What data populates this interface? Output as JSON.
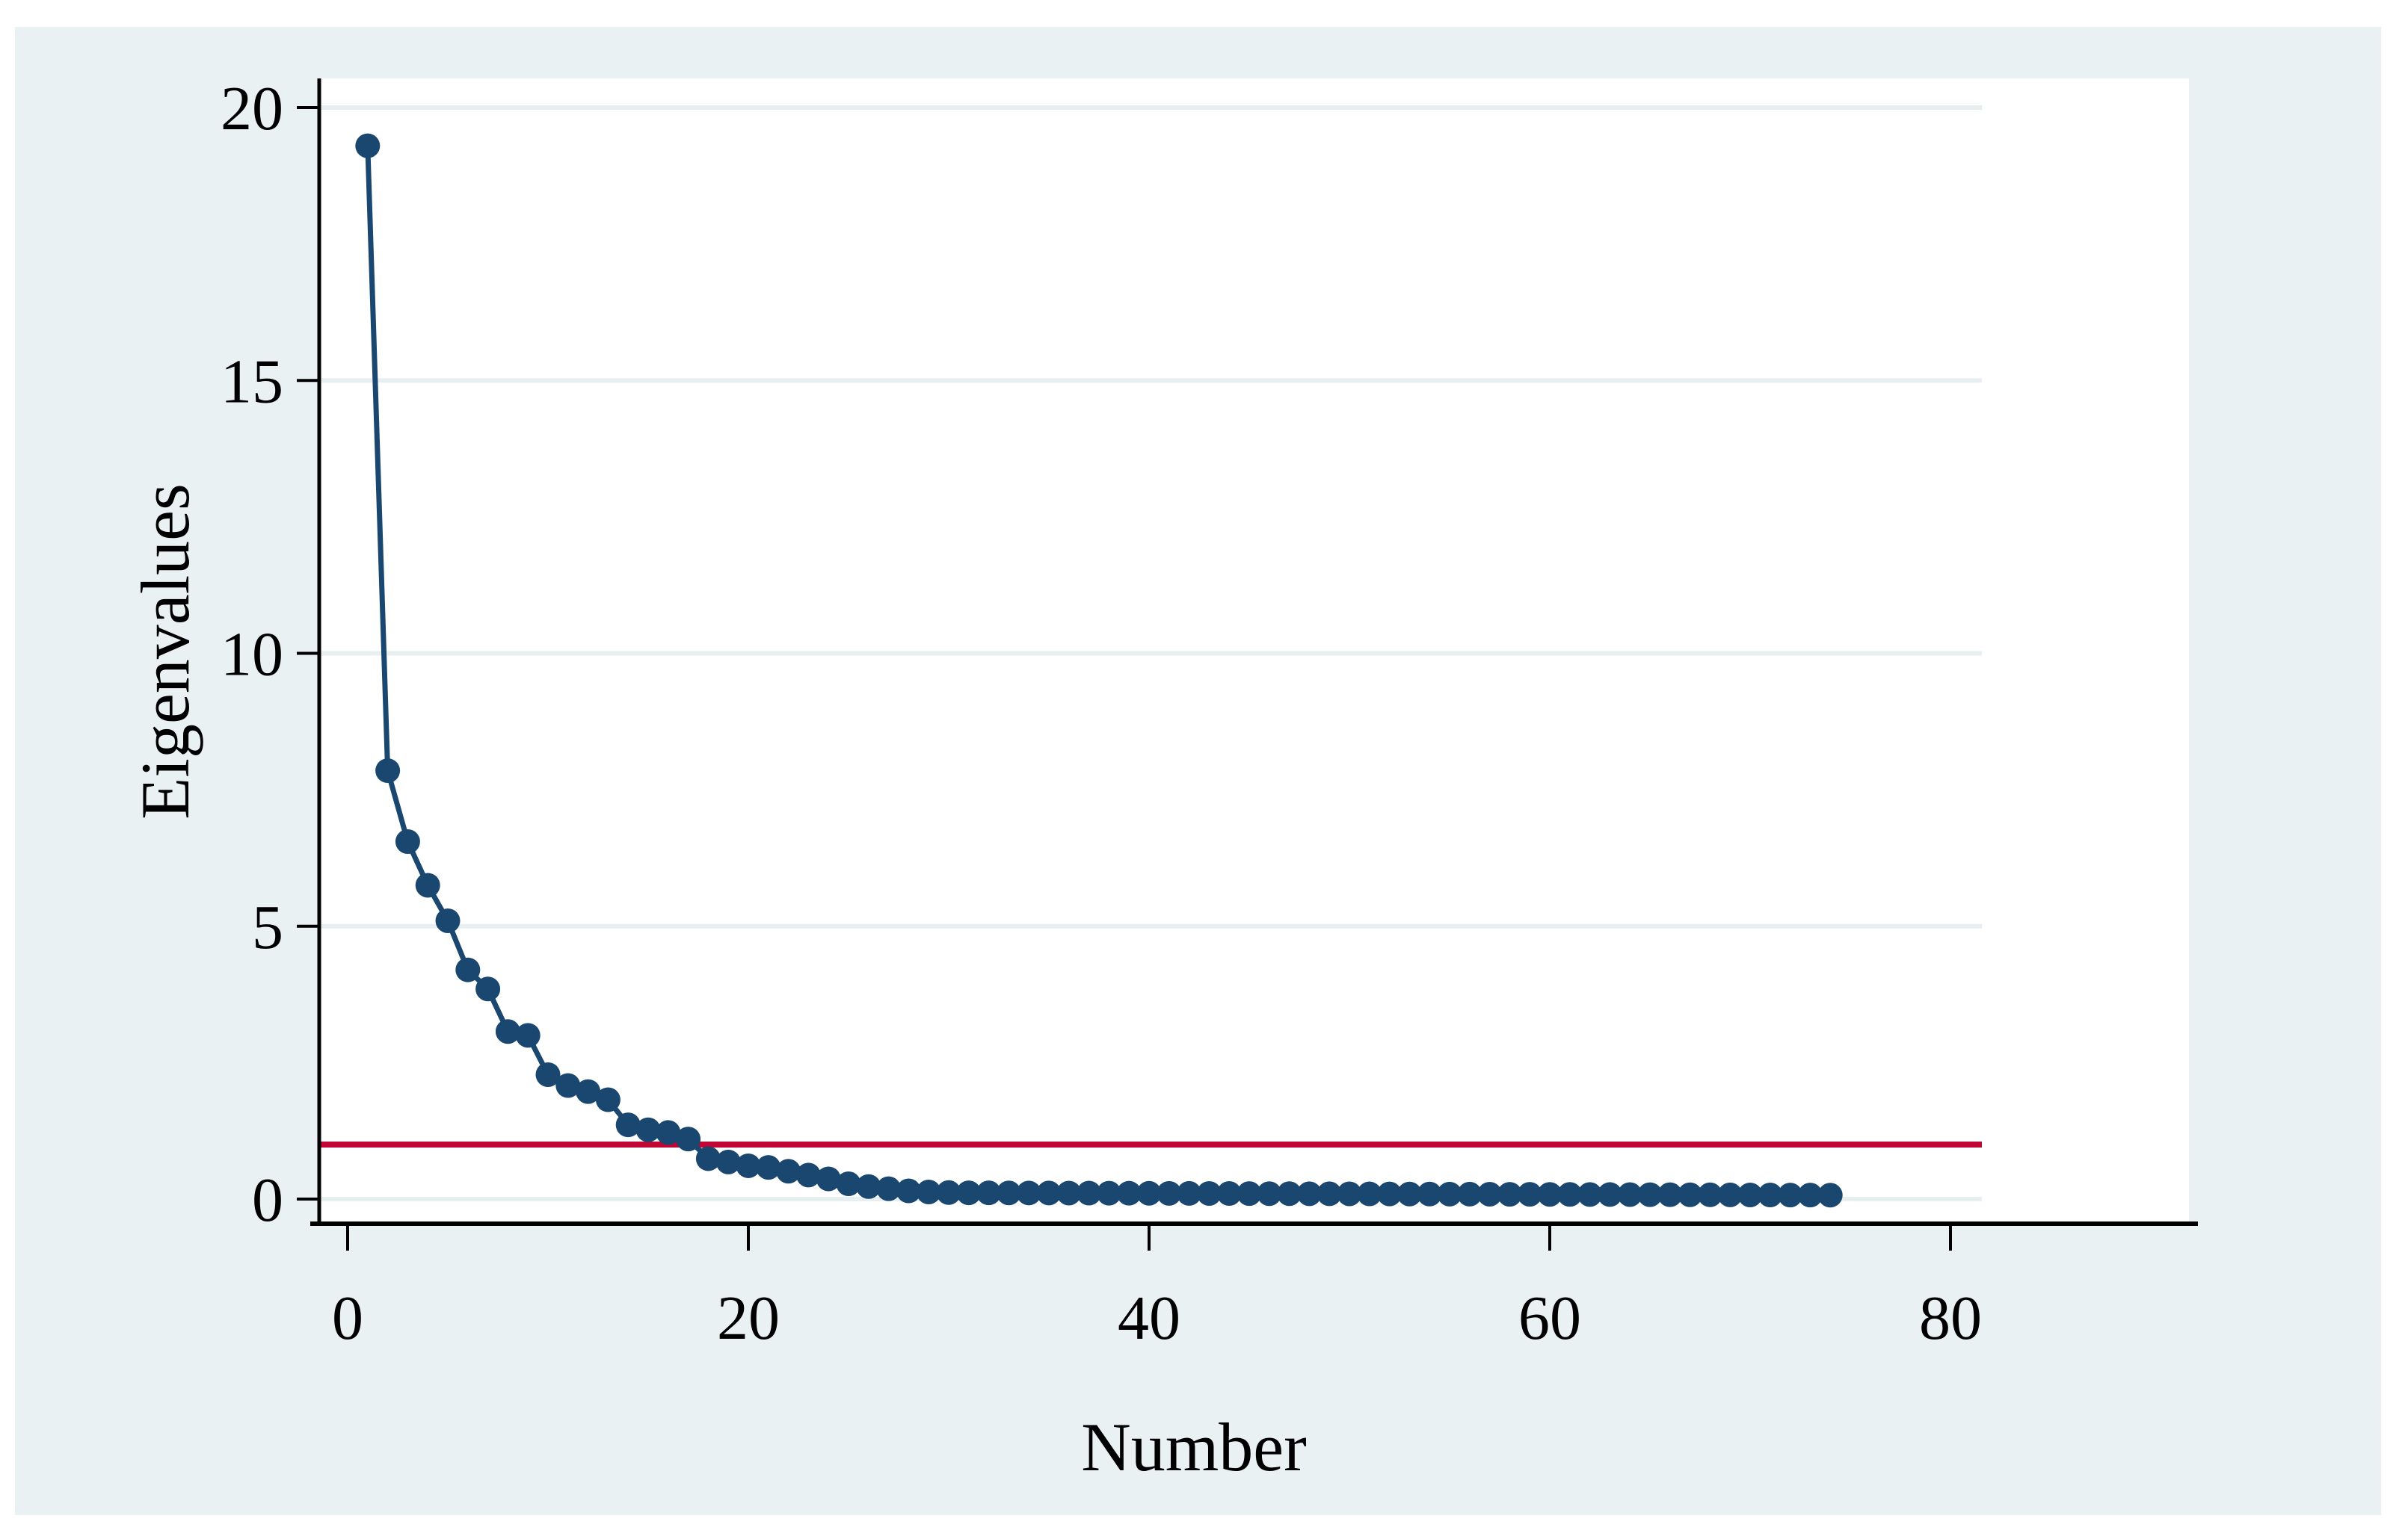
{
  "chart_data": {
    "type": "line",
    "title": "",
    "xlabel": "Number",
    "ylabel": "Eigenvalues",
    "x": [
      1,
      2,
      3,
      4,
      5,
      6,
      7,
      8,
      9,
      10,
      11,
      12,
      13,
      14,
      15,
      16,
      17,
      18,
      19,
      20,
      21,
      22,
      23,
      24,
      25,
      26,
      27,
      28,
      29,
      30,
      31,
      32,
      33,
      34,
      35,
      36,
      37,
      38,
      39,
      40,
      41,
      42,
      43,
      44,
      45,
      46,
      47,
      48,
      49,
      50,
      51,
      52,
      53,
      54,
      55,
      56,
      57,
      58,
      59,
      60,
      61,
      62,
      63,
      64,
      65,
      66,
      67,
      68,
      69,
      70,
      71,
      72,
      73,
      74
    ],
    "series": [
      {
        "name": "Eigenvalues",
        "values": [
          19.3,
          7.85,
          6.55,
          5.75,
          5.1,
          4.2,
          3.85,
          3.07,
          3.0,
          2.28,
          2.08,
          1.97,
          1.82,
          1.36,
          1.27,
          1.22,
          1.1,
          0.74,
          0.68,
          0.61,
          0.58,
          0.51,
          0.44,
          0.37,
          0.28,
          0.23,
          0.19,
          0.15,
          0.13,
          0.12,
          0.115,
          0.114,
          0.113,
          0.112,
          0.111,
          0.11,
          0.109,
          0.108,
          0.107,
          0.106,
          0.105,
          0.104,
          0.103,
          0.102,
          0.101,
          0.1,
          0.099,
          0.098,
          0.097,
          0.096,
          0.095,
          0.094,
          0.093,
          0.092,
          0.091,
          0.09,
          0.089,
          0.088,
          0.087,
          0.086,
          0.085,
          0.084,
          0.083,
          0.082,
          0.081,
          0.08,
          0.079,
          0.078,
          0.077,
          0.076,
          0.075,
          0.074,
          0.073,
          0.072
        ]
      }
    ],
    "reference_line": {
      "axis": "y",
      "value": 1
    },
    "x_ticks": [
      0,
      20,
      40,
      60,
      80
    ],
    "y_ticks": [
      0,
      5,
      10,
      15,
      20
    ],
    "xlim": [
      -1.5,
      92
    ],
    "ylim": [
      -0.45,
      21
    ],
    "grid": "horizontal",
    "legend": "none",
    "marker": "filled-circle"
  },
  "colors": {
    "marker_line": "#1a476f",
    "reference_line": "#c10534",
    "graph_region": "#eaf1f2",
    "plot_region": "#ffffff",
    "gridline": "#e7eff1",
    "axis": "#000000",
    "text": "#000000",
    "page": "#ffffff"
  }
}
